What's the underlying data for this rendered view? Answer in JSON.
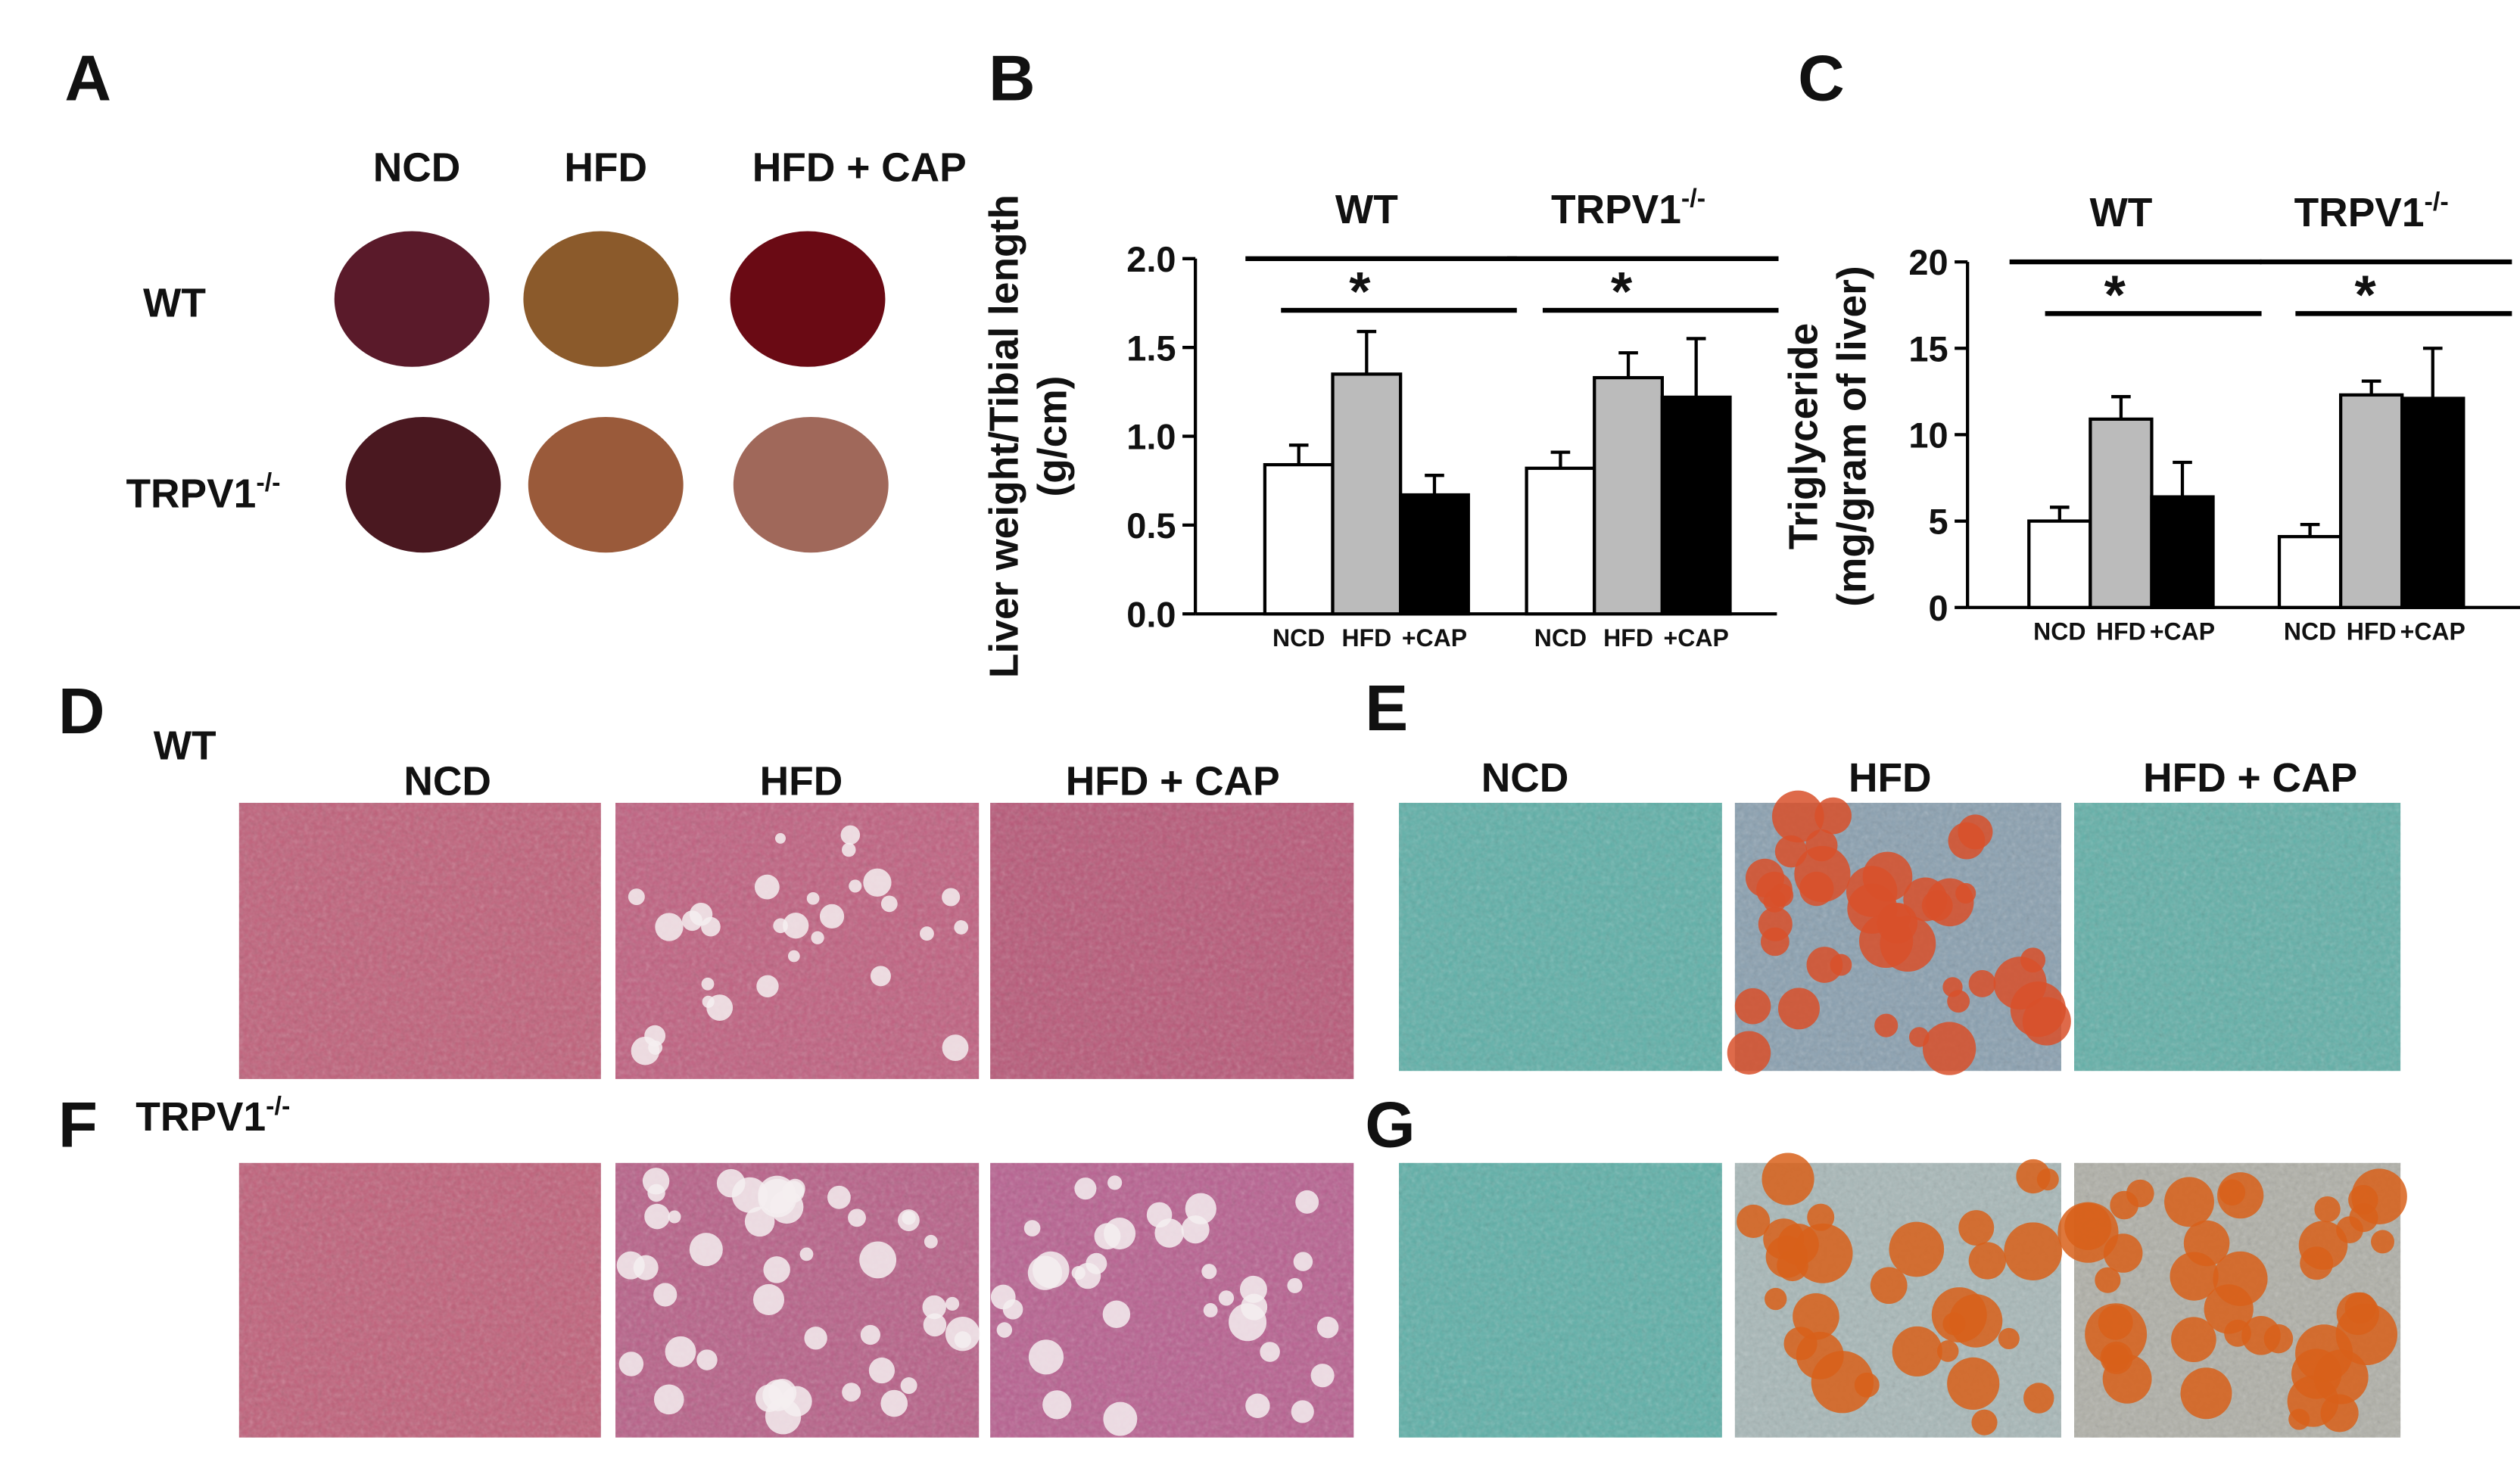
{
  "panels": {
    "A": {
      "letter": "A",
      "columns": [
        "NCD",
        "HFD",
        "HFD + CAP"
      ],
      "rows": [
        {
          "label": "WT"
        },
        {
          "label": "TRPV1",
          "sup": "-/-"
        }
      ]
    },
    "D": {
      "letter": "D",
      "row": {
        "label": "WT"
      },
      "columns": [
        "NCD",
        "HFD",
        "HFD + CAP"
      ]
    },
    "E": {
      "letter": "E",
      "columns": [
        "NCD",
        "HFD",
        "HFD + CAP"
      ]
    },
    "F": {
      "letter": "F",
      "row": {
        "label": "TRPV1",
        "sup": "-/-"
      }
    },
    "G": {
      "letter": "G"
    }
  },
  "chart_data": [
    {
      "type": "bar",
      "panel_letter": "B",
      "y_label": [
        "Liver weight/Tibial length",
        "(g/cm)"
      ],
      "groups": [
        {
          "label": "WT"
        },
        {
          "label": "TRPV1",
          "sup": "-/-"
        }
      ],
      "significance": [
        "*",
        "*"
      ],
      "series": [
        {
          "name": "NCD",
          "color": "#ffffff",
          "values": [
            0.84,
            0.82
          ],
          "errors": [
            0.11,
            0.09
          ]
        },
        {
          "name": "HFD",
          "color": "#bbbbbb",
          "values": [
            1.35,
            1.33
          ],
          "errors": [
            0.24,
            0.14
          ]
        },
        {
          "name": "+CAP",
          "color": "#000000",
          "values": [
            0.67,
            1.22
          ],
          "errors": [
            0.11,
            0.33
          ]
        }
      ],
      "ylim": [
        0,
        2
      ],
      "yticks": [
        {
          "value": 0,
          "label": "0.0"
        },
        0.5,
        {
          "value": 1,
          "label": "1.0"
        },
        1.5,
        {
          "value": 2,
          "label": "2.0"
        }
      ]
    },
    {
      "type": "bar",
      "panel_letter": "C",
      "y_label": [
        "Triglyceride",
        "(mg/gram of liver)"
      ],
      "groups": [
        {
          "label": "WT"
        },
        {
          "label": "TRPV1",
          "sup": "-/-"
        }
      ],
      "significance": [
        "*",
        "*"
      ],
      "series": [
        {
          "name": "NCD",
          "color": "#ffffff",
          "values": [
            5.0,
            4.1
          ],
          "errors": [
            0.8,
            0.7
          ]
        },
        {
          "name": "HFD",
          "color": "#bbbbbb",
          "values": [
            10.9,
            12.3
          ],
          "errors": [
            1.3,
            0.8
          ]
        },
        {
          "name": "+CAP",
          "color": "#000000",
          "values": [
            6.4,
            12.1
          ],
          "errors": [
            2.0,
            2.9
          ]
        }
      ],
      "ylim": [
        0,
        20
      ],
      "yticks": [
        0,
        5,
        10,
        15,
        20
      ]
    }
  ]
}
